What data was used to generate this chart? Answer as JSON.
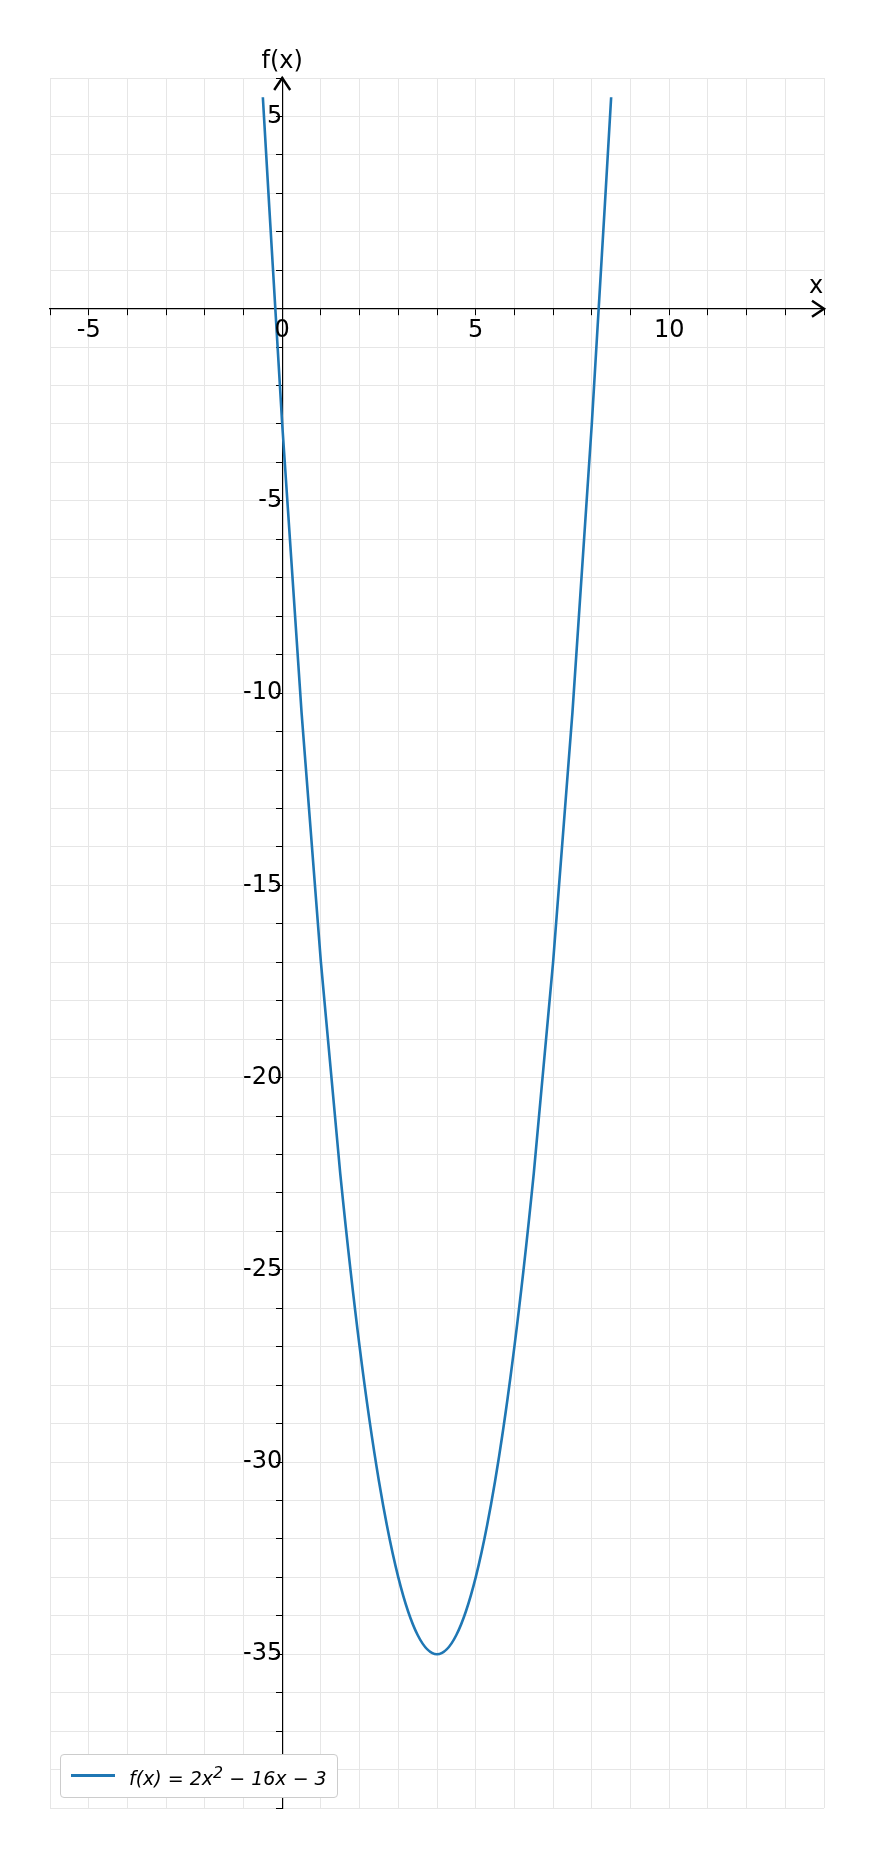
{
  "chart_data": {
    "type": "line",
    "xlabel": "x",
    "ylabel": "f(x)",
    "x": [
      -0.5,
      0,
      0.5,
      1,
      1.5,
      2,
      2.5,
      3,
      3.5,
      4,
      4.5,
      5,
      5.5,
      6,
      6.5,
      7,
      7.5,
      8,
      8.5
    ],
    "series": [
      {
        "name": "f(x) = 2x$^{2}$ − 16x − 3",
        "color": "#1f77b4",
        "values": [
          5.5,
          -3,
          -10.5,
          -17,
          -22.5,
          -27,
          -30.5,
          -33,
          -34.5,
          -35,
          -34.5,
          -33,
          -30.5,
          -27,
          -22.5,
          -17,
          -10.5,
          -3,
          5.5
        ]
      }
    ],
    "xlim": [
      -6,
      14
    ],
    "ylim": [
      -39,
      6
    ],
    "xticks": [
      {
        "value": -6,
        "label": null
      },
      -5,
      {
        "value": -4,
        "label": null
      },
      {
        "value": -3,
        "label": null
      },
      {
        "value": -2,
        "label": null
      },
      {
        "value": -1,
        "label": null
      },
      0,
      {
        "value": 1,
        "label": null
      },
      {
        "value": 2,
        "label": null
      },
      {
        "value": 3,
        "label": null
      },
      {
        "value": 4,
        "label": null
      },
      5,
      {
        "value": 6,
        "label": null
      },
      {
        "value": 7,
        "label": null
      },
      {
        "value": 8,
        "label": null
      },
      {
        "value": 9,
        "label": null
      },
      10,
      {
        "value": 11,
        "label": null
      },
      {
        "value": 12,
        "label": null
      },
      {
        "value": 13,
        "label": null
      },
      {
        "value": 14,
        "label": null
      }
    ],
    "yticks": [
      {
        "value": -39,
        "label": null
      },
      {
        "value": -38,
        "label": null
      },
      {
        "value": -37,
        "label": null
      },
      {
        "value": -36,
        "label": null
      },
      -35,
      {
        "value": -34,
        "label": null
      },
      {
        "value": -33,
        "label": null
      },
      {
        "value": -32,
        "label": null
      },
      {
        "value": -31,
        "label": null
      },
      -30,
      {
        "value": -29,
        "label": null
      },
      {
        "value": -28,
        "label": null
      },
      {
        "value": -27,
        "label": null
      },
      {
        "value": -26,
        "label": null
      },
      -25,
      {
        "value": -24,
        "label": null
      },
      {
        "value": -23,
        "label": null
      },
      {
        "value": -22,
        "label": null
      },
      {
        "value": -21,
        "label": null
      },
      -20,
      {
        "value": -19,
        "label": null
      },
      {
        "value": -18,
        "label": null
      },
      {
        "value": -17,
        "label": null
      },
      {
        "value": -16,
        "label": null
      },
      -15,
      {
        "value": -14,
        "label": null
      },
      {
        "value": -13,
        "label": null
      },
      {
        "value": -12,
        "label": null
      },
      {
        "value": -11,
        "label": null
      },
      -10,
      {
        "value": -9,
        "label": null
      },
      {
        "value": -8,
        "label": null
      },
      {
        "value": -7,
        "label": null
      },
      {
        "value": -6,
        "label": null
      },
      -5,
      {
        "value": -4,
        "label": null
      },
      {
        "value": -3,
        "label": null
      },
      {
        "value": -2,
        "label": null
      },
      {
        "value": -1,
        "label": null
      },
      {
        "value": 0,
        "label": null
      },
      {
        "value": 1,
        "label": null
      },
      {
        "value": 2,
        "label": null
      },
      {
        "value": 3,
        "label": null
      },
      {
        "value": 4,
        "label": null
      },
      5,
      {
        "value": 6,
        "label": null
      }
    ],
    "grid": true,
    "legend": "bottom left",
    "marker": "none",
    "line_style": "solid"
  }
}
